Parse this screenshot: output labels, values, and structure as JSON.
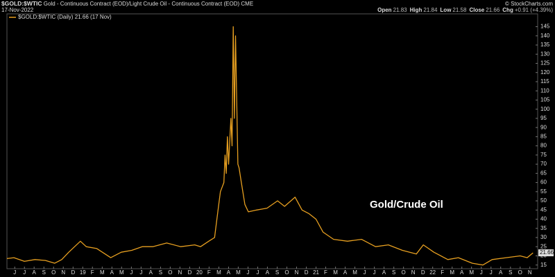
{
  "chart_data": {
    "type": "line",
    "symbol": "$GOLD:$WTIC",
    "subtitle": "Gold - Continuous Contract (EOD)/Light Crude Oil - Continuous Contract (EOD)",
    "exchange": "CME",
    "date": "17-Nov-2022",
    "copyright": "© StockCharts.com",
    "quote": [
      {
        "label": "Open",
        "value": 21.83
      },
      {
        "label": "High",
        "value": 21.84
      },
      {
        "label": "Low",
        "value": 21.58
      },
      {
        "label": "Close",
        "value": 21.66
      },
      {
        "label": "Chg",
        "value": "+0.91 (+4.39%)"
      }
    ],
    "legend_text": "$GOLD:$WTIC (Daily) 21.66 (17 Nov)",
    "annotation": "Gold/Crude Oil",
    "x": [
      2018.35,
      2018.41,
      2018.5,
      2018.59,
      2018.68,
      2018.76,
      2018.82,
      2018.88,
      2018.98,
      2019.03,
      2019.12,
      2019.24,
      2019.33,
      2019.42,
      2019.51,
      2019.6,
      2019.72,
      2019.84,
      2019.96,
      2020.01,
      2020.08,
      2020.13,
      2020.16,
      2020.18,
      2020.21,
      2020.22,
      2020.23,
      2020.24,
      2020.25,
      2020.27,
      2020.28,
      2020.29,
      2020.3,
      2020.31,
      2020.33,
      2020.34,
      2020.36,
      2020.39,
      2020.42,
      2020.49,
      2020.58,
      2020.67,
      2020.73,
      2020.82,
      2020.88,
      2020.94,
      2021.0,
      2021.06,
      2021.15,
      2021.27,
      2021.39,
      2021.51,
      2021.62,
      2021.74,
      2021.86,
      2021.92,
      2022.01,
      2022.13,
      2022.22,
      2022.34,
      2022.43,
      2022.51,
      2022.63,
      2022.75,
      2022.81,
      2022.86
    ],
    "series": [
      {
        "name": "$GOLD:$WTIC",
        "color": "#e8a020",
        "values": [
          18.5,
          19,
          17,
          18,
          17.5,
          16,
          18,
          22,
          28,
          25,
          24,
          19,
          22,
          23,
          25,
          25,
          27,
          25,
          26,
          25,
          28,
          30,
          45,
          55,
          60,
          75,
          65,
          85,
          70,
          95,
          80,
          145,
          95,
          140,
          70,
          68,
          60,
          48,
          44,
          45,
          46,
          50,
          47,
          52,
          45,
          43,
          40,
          33,
          29,
          28,
          29,
          25,
          26,
          23,
          21,
          26,
          22,
          18,
          19,
          16,
          15,
          18,
          19,
          20,
          19,
          21.66
        ]
      }
    ],
    "xlim": [
      2018.35,
      2022.9
    ],
    "xticks": [
      {
        "value": 2018.417,
        "label": "J"
      },
      {
        "value": 2018.5,
        "label": "J"
      },
      {
        "value": 2018.583,
        "label": "A"
      },
      {
        "value": 2018.667,
        "label": "S"
      },
      {
        "value": 2018.75,
        "label": "O"
      },
      {
        "value": 2018.833,
        "label": "N"
      },
      {
        "value": 2018.917,
        "label": "D"
      },
      {
        "value": 2019,
        "label": "19"
      },
      {
        "value": 2019.083,
        "label": "F"
      },
      {
        "value": 2019.167,
        "label": "M"
      },
      {
        "value": 2019.25,
        "label": "A"
      },
      {
        "value": 2019.333,
        "label": "M"
      },
      {
        "value": 2019.417,
        "label": "J"
      },
      {
        "value": 2019.5,
        "label": "J"
      },
      {
        "value": 2019.583,
        "label": "A"
      },
      {
        "value": 2019.667,
        "label": "S"
      },
      {
        "value": 2019.75,
        "label": "O"
      },
      {
        "value": 2019.833,
        "label": "N"
      },
      {
        "value": 2019.917,
        "label": "D"
      },
      {
        "value": 2020,
        "label": "20"
      },
      {
        "value": 2020.083,
        "label": "F"
      },
      {
        "value": 2020.167,
        "label": "M"
      },
      {
        "value": 2020.25,
        "label": "A"
      },
      {
        "value": 2020.333,
        "label": "M"
      },
      {
        "value": 2020.417,
        "label": "J"
      },
      {
        "value": 2020.5,
        "label": "J"
      },
      {
        "value": 2020.583,
        "label": "A"
      },
      {
        "value": 2020.667,
        "label": "S"
      },
      {
        "value": 2020.75,
        "label": "O"
      },
      {
        "value": 2020.833,
        "label": "N"
      },
      {
        "value": 2020.917,
        "label": "D"
      },
      {
        "value": 2021,
        "label": "21"
      },
      {
        "value": 2021.083,
        "label": "F"
      },
      {
        "value": 2021.167,
        "label": "M"
      },
      {
        "value": 2021.25,
        "label": "A"
      },
      {
        "value": 2021.333,
        "label": "M"
      },
      {
        "value": 2021.417,
        "label": "J"
      },
      {
        "value": 2021.5,
        "label": "J"
      },
      {
        "value": 2021.583,
        "label": "A"
      },
      {
        "value": 2021.667,
        "label": "S"
      },
      {
        "value": 2021.75,
        "label": "O"
      },
      {
        "value": 2021.833,
        "label": "N"
      },
      {
        "value": 2021.917,
        "label": "D"
      },
      {
        "value": 2022,
        "label": "22"
      },
      {
        "value": 2022.083,
        "label": "F"
      },
      {
        "value": 2022.167,
        "label": "M"
      },
      {
        "value": 2022.25,
        "label": "A"
      },
      {
        "value": 2022.333,
        "label": "M"
      },
      {
        "value": 2022.417,
        "label": "J"
      },
      {
        "value": 2022.5,
        "label": "J"
      },
      {
        "value": 2022.583,
        "label": "A"
      },
      {
        "value": 2022.667,
        "label": "S"
      },
      {
        "value": 2022.75,
        "label": "O"
      },
      {
        "value": 2022.833,
        "label": "N"
      }
    ],
    "ylim": [
      13,
      152
    ],
    "yticks": [
      15,
      20,
      25,
      30,
      35,
      40,
      45,
      50,
      55,
      60,
      65,
      70,
      75,
      80,
      85,
      90,
      95,
      100,
      105,
      110,
      115,
      120,
      125,
      130,
      135,
      140,
      145
    ],
    "grid": false
  }
}
